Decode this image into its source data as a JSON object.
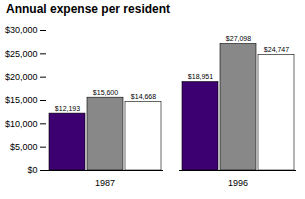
{
  "chart_data": {
    "type": "bar",
    "title": "Annual expense per resident",
    "categories": [
      "1987",
      "1996"
    ],
    "series": [
      {
        "color": "#3d0070",
        "values": [
          12193,
          18951
        ],
        "value_labels": [
          "$12,193",
          "$18,951"
        ]
      },
      {
        "color": "#888888",
        "values": [
          15600,
          27098
        ],
        "value_labels": [
          "$15,600",
          "$27,098"
        ]
      },
      {
        "color": "#ffffff",
        "values": [
          14668,
          24747
        ],
        "value_labels": [
          "$14,668",
          "$24,747"
        ]
      }
    ],
    "ylim": [
      0,
      30000
    ],
    "yticks": [
      {
        "value": 0,
        "label": "$0"
      },
      {
        "value": 5000,
        "label": "$5,000"
      },
      {
        "value": 10000,
        "label": "$10,000"
      },
      {
        "value": 15000,
        "label": "$15,000"
      },
      {
        "value": 20000,
        "label": "$20,000"
      },
      {
        "value": 25000,
        "label": "$25,000"
      },
      {
        "value": 30000,
        "label": "$30,000"
      }
    ],
    "data_labels": true
  }
}
